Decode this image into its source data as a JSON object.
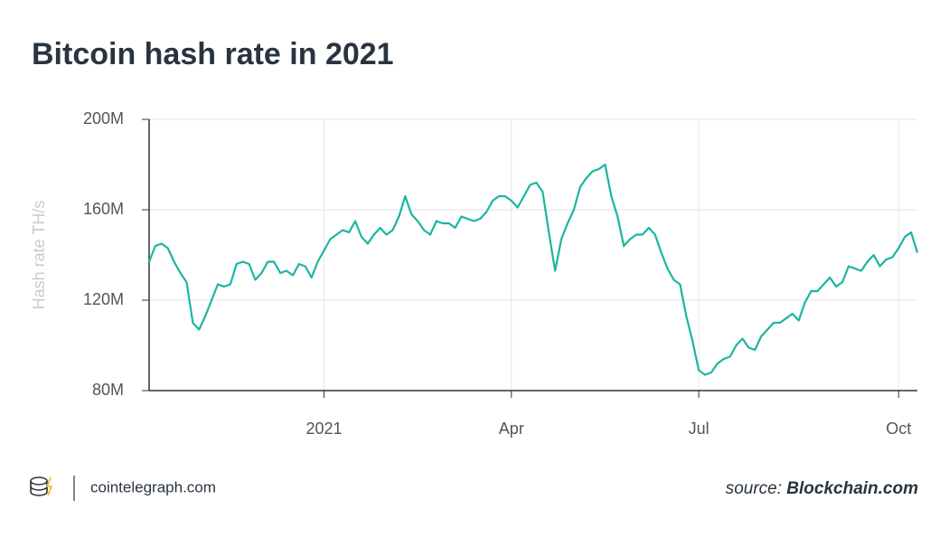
{
  "chart_data": {
    "type": "line",
    "title": "Bitcoin hash rate in 2021",
    "ylabel": "Hash rate TH/s",
    "brand": "cointelegraph.com",
    "source_label": "source:",
    "source": "Blockchain.com",
    "categories": [
      null,
      null,
      null,
      null,
      null,
      null,
      null,
      null,
      null,
      null,
      null,
      null,
      null,
      null,
      null,
      null,
      null,
      null,
      null,
      null,
      null,
      null,
      null,
      null,
      null,
      null,
      null,
      null,
      "2021",
      null,
      null,
      null,
      null,
      null,
      null,
      null,
      null,
      null,
      null,
      null,
      null,
      null,
      null,
      null,
      null,
      null,
      null,
      null,
      null,
      null,
      null,
      null,
      null,
      null,
      null,
      null,
      null,
      null,
      "Apr",
      null,
      null,
      null,
      null,
      null,
      null,
      null,
      null,
      null,
      null,
      null,
      null,
      null,
      null,
      null,
      null,
      null,
      null,
      null,
      null,
      null,
      null,
      null,
      null,
      null,
      null,
      null,
      null,
      null,
      "Jul",
      null,
      null,
      null,
      null,
      null,
      null,
      null,
      null,
      null,
      null,
      null,
      null,
      null,
      null,
      null,
      null,
      null,
      null,
      null,
      null,
      null,
      null,
      null,
      null,
      null,
      null,
      null,
      null,
      null,
      null,
      null,
      "Oct",
      null,
      null,
      null
    ],
    "series": [
      {
        "name": "Hash rate",
        "color": "#1ab5a3",
        "values": [
          137000000,
          144000000,
          145000000,
          143000000,
          137000000,
          132000000,
          128000000,
          110000000,
          107000000,
          113000000,
          120000000,
          127000000,
          126000000,
          127000000,
          136000000,
          137000000,
          136000000,
          129000000,
          132000000,
          137000000,
          137000000,
          132000000,
          133000000,
          131000000,
          136000000,
          135000000,
          130000000,
          137000000,
          142000000,
          147000000,
          149000000,
          151000000,
          150000000,
          155000000,
          148000000,
          145000000,
          149000000,
          152000000,
          149000000,
          151000000,
          157000000,
          166000000,
          158000000,
          155000000,
          151000000,
          149000000,
          155000000,
          154000000,
          154000000,
          152000000,
          157000000,
          156000000,
          155000000,
          156000000,
          159000000,
          164000000,
          166000000,
          166000000,
          164000000,
          161000000,
          166000000,
          171000000,
          172000000,
          168000000,
          150000000,
          133000000,
          147000000,
          154000000,
          160000000,
          170000000,
          174000000,
          177000000,
          178000000,
          180000000,
          166000000,
          157000000,
          144000000,
          147000000,
          149000000,
          149000000,
          152000000,
          149000000,
          141000000,
          134000000,
          129000000,
          127000000,
          113000000,
          102000000,
          89000000,
          87000000,
          88000000,
          92000000,
          94000000,
          95000000,
          100000000,
          103000000,
          99000000,
          98000000,
          104000000,
          107000000,
          110000000,
          110000000,
          112000000,
          114000000,
          111000000,
          119000000,
          124000000,
          124000000,
          127000000,
          130000000,
          126000000,
          128000000,
          135000000,
          134000000,
          133000000,
          137000000,
          140000000,
          135000000,
          138000000,
          139000000,
          143000000,
          148000000,
          150000000,
          141000000
        ]
      }
    ],
    "ylim": [
      80000000,
      200000000
    ],
    "yticks": [
      {
        "value": 80000000,
        "label": "80M"
      },
      {
        "value": 120000000,
        "label": "120M"
      },
      {
        "value": 160000000,
        "label": "160M"
      },
      {
        "value": 200000000,
        "label": "200M"
      }
    ],
    "grid": true
  }
}
